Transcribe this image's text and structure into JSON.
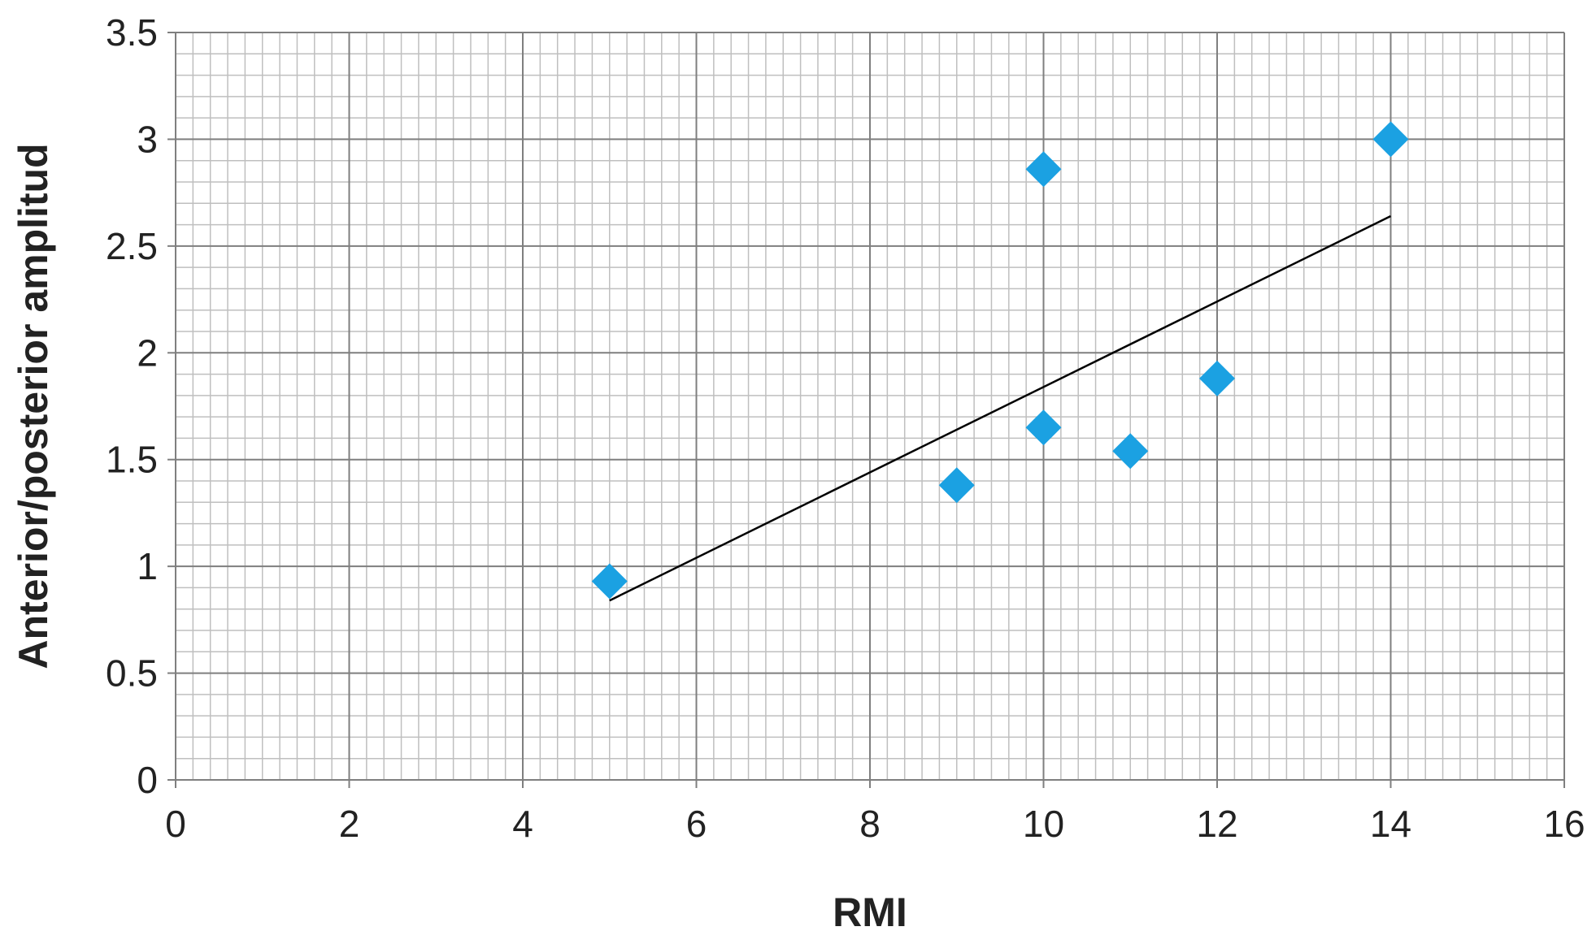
{
  "chart_data": {
    "type": "scatter",
    "title": "",
    "xlabel": "RMI",
    "ylabel": "Anterior/posterior amplitud",
    "xlim": [
      0,
      16
    ],
    "ylim": [
      0,
      3.5
    ],
    "x_ticks": [
      0,
      2,
      4,
      6,
      8,
      10,
      12,
      14,
      16
    ],
    "x_tick_labels": [
      "0",
      "2",
      "4",
      "6",
      "8",
      "10",
      "12",
      "14",
      "16"
    ],
    "y_ticks": [
      0,
      0.5,
      1,
      1.5,
      2,
      2.5,
      3,
      3.5
    ],
    "y_tick_labels": [
      "0",
      "0.5",
      "1",
      "1.5",
      "2",
      "2.5",
      "3",
      "3.5"
    ],
    "grid": true,
    "minor_grid": true,
    "legend": "none",
    "series": [
      {
        "marker": "diamond",
        "color": "#1ba1e2",
        "points": [
          {
            "x": 5,
            "y": 0.93
          },
          {
            "x": 9,
            "y": 1.38
          },
          {
            "x": 10,
            "y": 2.86
          },
          {
            "x": 10,
            "y": 1.65
          },
          {
            "x": 11,
            "y": 1.54
          },
          {
            "x": 12,
            "y": 1.88
          },
          {
            "x": 14,
            "y": 3.0
          }
        ]
      }
    ],
    "trendline": {
      "type": "linear",
      "color": "#000000",
      "x": [
        5,
        14
      ],
      "y": [
        0.84,
        2.64
      ]
    }
  }
}
